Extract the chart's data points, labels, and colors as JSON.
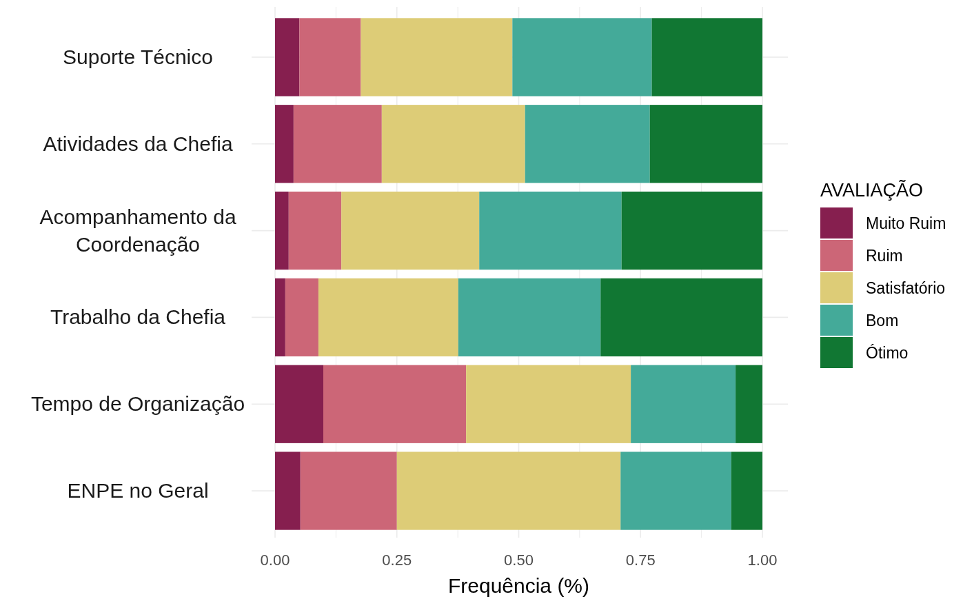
{
  "chart_data": {
    "type": "bar",
    "orientation": "horizontal",
    "stacked": true,
    "categories": [
      "Suporte Técnico",
      "Atividades da Chefia",
      "Acompanhamento da Coordenação",
      "Trabalho da Chefia",
      "Tempo de Organização",
      "ENPE no Geral"
    ],
    "series": [
      {
        "name": "Muito Ruim",
        "color": "#861f4f",
        "values": [
          0.05,
          0.038,
          0.028,
          0.021,
          0.099,
          0.052
        ]
      },
      {
        "name": "Ruim",
        "color": "#cc6677",
        "values": [
          0.126,
          0.181,
          0.108,
          0.068,
          0.293,
          0.198
        ]
      },
      {
        "name": "Satisfatório",
        "color": "#ddcc77",
        "values": [
          0.311,
          0.294,
          0.283,
          0.287,
          0.338,
          0.459
        ]
      },
      {
        "name": "Bom",
        "color": "#44aa99",
        "values": [
          0.286,
          0.256,
          0.292,
          0.292,
          0.215,
          0.227
        ]
      },
      {
        "name": "Ótimo",
        "color": "#117733",
        "values": [
          0.227,
          0.231,
          0.289,
          0.332,
          0.055,
          0.064
        ]
      }
    ],
    "xlim": [
      0,
      1
    ],
    "xticks": [
      {
        "value": 0,
        "label": "0.00"
      },
      {
        "value": 0.125,
        "label": null
      },
      {
        "value": 0.25,
        "label": "0.25"
      },
      {
        "value": 0.375,
        "label": null
      },
      {
        "value": 0.5,
        "label": "0.50"
      },
      {
        "value": 0.625,
        "label": null
      },
      {
        "value": 0.75,
        "label": "0.75"
      },
      {
        "value": 0.875,
        "label": null
      },
      {
        "value": 1,
        "label": "1.00"
      }
    ],
    "xlabel": "Frequência (%)",
    "legend_title": "AVALIAÇÃO",
    "legend": "right",
    "grid": true
  }
}
